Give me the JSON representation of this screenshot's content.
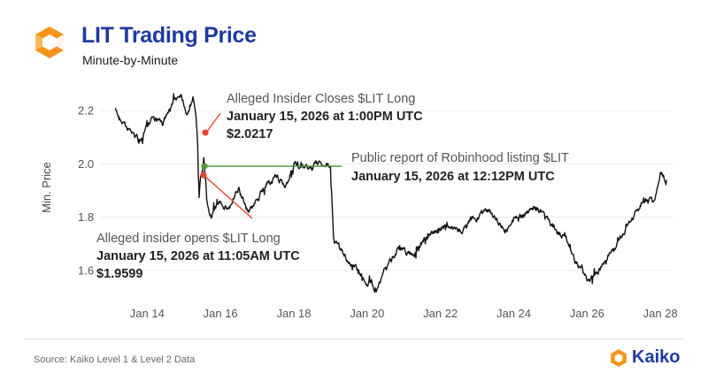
{
  "header": {
    "title": "LIT Trading Price",
    "subtitle": "Minute-by-Minute"
  },
  "footer": {
    "source": "Source: Kaiko Level 1 & Level 2 Data",
    "brand": "Kaiko"
  },
  "colors": {
    "title": "#1f3a9e",
    "line": "#111111",
    "annotation_red": "#e8452c",
    "annotation_green": "#4f9a3a",
    "logo_orange": "#f7931a"
  },
  "icons": {
    "logo": "kaiko-hexagon-logo-icon",
    "brand": "kaiko-hexagon-logo-icon"
  },
  "chart_data": {
    "type": "line",
    "title": "LIT Trading Price",
    "subtitle": "Minute-by-Minute",
    "xlabel": "",
    "ylabel": "Min. Price",
    "x_ticks": [
      "Jan 14",
      "Jan 16",
      "Jan 18",
      "Jan 20",
      "Jan 22",
      "Jan 24",
      "Jan 26",
      "Jan 28"
    ],
    "y_ticks": [
      "1.6",
      "1.8",
      "2.0",
      "2.2"
    ],
    "ylim": [
      1.52,
      2.3
    ],
    "xlim": [
      "2026-01-12T20:00",
      "2026-01-28T08:00"
    ],
    "grid": "horizontal",
    "series": [
      {
        "x": [
          "2026-01-13T03:00",
          "2026-01-13T12:00",
          "2026-01-13T20:00",
          "2026-01-14T03:00",
          "2026-01-14T10:00",
          "2026-01-14T16:00",
          "2026-01-14T22:00",
          "2026-01-15T02:00",
          "2026-01-15T06:00",
          "2026-01-15T08:00",
          "2026-01-15T09:00",
          "2026-01-15T10:00",
          "2026-01-15T11:05",
          "2026-01-15T12:12",
          "2026-01-15T13:00",
          "2026-01-15T15:00",
          "2026-01-15T18:00",
          "2026-01-16T00:00",
          "2026-01-16T06:00",
          "2026-01-16T12:00",
          "2026-01-16T18:00",
          "2026-01-17T00:00",
          "2026-01-17T06:00",
          "2026-01-17T12:00",
          "2026-01-17T18:00",
          "2026-01-18T00:00",
          "2026-01-18T06:00",
          "2026-01-18T12:00",
          "2026-01-18T18:00",
          "2026-01-19T00:00",
          "2026-01-19T02:00",
          "2026-01-19T06:00",
          "2026-01-19T14:00",
          "2026-01-19T22:00",
          "2026-01-20T06:00",
          "2026-01-20T14:00",
          "2026-01-20T20:00",
          "2026-01-21T06:00",
          "2026-01-21T16:00",
          "2026-01-22T02:00",
          "2026-01-22T12:00",
          "2026-01-22T22:00",
          "2026-01-23T08:00",
          "2026-01-23T18:00",
          "2026-01-24T04:00",
          "2026-01-24T14:00",
          "2026-01-25T00:00",
          "2026-01-25T10:00",
          "2026-01-25T18:00",
          "2026-01-26T00:00",
          "2026-01-26T06:00",
          "2026-01-26T14:00",
          "2026-01-26T22:00",
          "2026-01-27T06:00",
          "2026-01-27T14:00",
          "2026-01-27T20:00",
          "2026-01-28T00:00",
          "2026-01-28T04:00"
        ],
        "y": [
          2.2,
          2.13,
          2.08,
          2.18,
          2.15,
          2.22,
          2.27,
          2.2,
          2.24,
          2.18,
          2.07,
          1.88,
          1.96,
          1.97,
          2.02,
          1.85,
          1.8,
          1.86,
          1.84,
          1.9,
          1.82,
          1.86,
          1.92,
          1.95,
          1.91,
          2.0,
          1.98,
          1.99,
          2.0,
          1.98,
          1.72,
          1.68,
          1.62,
          1.57,
          1.54,
          1.62,
          1.69,
          1.66,
          1.73,
          1.77,
          1.74,
          1.8,
          1.83,
          1.76,
          1.8,
          1.84,
          1.78,
          1.72,
          1.62,
          1.56,
          1.58,
          1.66,
          1.72,
          1.8,
          1.86,
          1.85,
          1.98,
          1.94
        ]
      }
    ],
    "annotations": [
      {
        "text": "Alleged Insider Closes $LIT Long",
        "date": "January 15, 2026 at 1:00PM UTC",
        "price": "$2.0217",
        "x": "2026-01-15T13:00",
        "y": 2.1,
        "color": "#e8452c"
      },
      {
        "text": "Public report of Robinhood listing $LIT",
        "date": "January 15, 2026 at 12:12PM UTC",
        "x": "2026-01-15T12:12",
        "y": 1.975,
        "color": "#4f9a3a"
      },
      {
        "text": "Alleged insider opens $LIT Long",
        "date": "January 15, 2026 at 11:05AM UTC",
        "price": "$1.9599",
        "x": "2026-01-15T11:05",
        "y": 1.94,
        "color": "#e8452c"
      }
    ]
  }
}
